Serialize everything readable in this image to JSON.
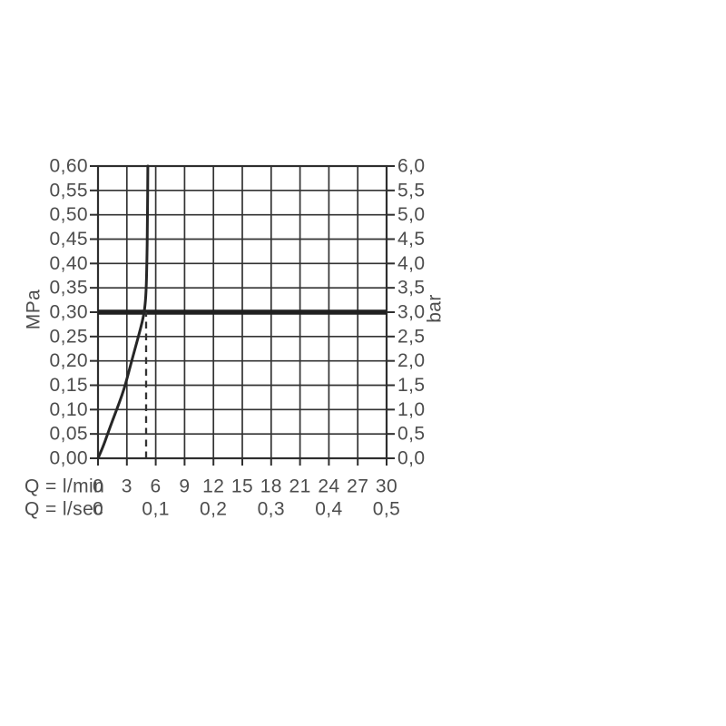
{
  "page": {
    "background": "#ffffff"
  },
  "colors": {
    "grid": "#333333",
    "border": "#2e2e2e",
    "tick": "#2e2e2e",
    "text": "#4d4d4d",
    "curve": "#262626",
    "reference_line": "#202020",
    "marker_line": "#333333"
  },
  "chart_data": {
    "type": "line",
    "title": "",
    "description": "Flow rate versus pressure diagram with flow limiter curve",
    "grid": true,
    "legend": false,
    "x_axis": {
      "label": "Q = l/min",
      "min": 0,
      "max": 30,
      "step": 3,
      "tick_values": [
        0,
        3,
        6,
        9,
        12,
        15,
        18,
        21,
        24,
        27,
        30
      ],
      "tick_labels": [
        "0",
        "3",
        "6",
        "9",
        "12",
        "15",
        "18",
        "21",
        "24",
        "27",
        "30"
      ]
    },
    "x_axis_secondary": {
      "label": "Q = l/sec",
      "tick_values": [
        0,
        6,
        12,
        18,
        24,
        30
      ],
      "tick_labels": [
        "0",
        "0,1",
        "0,2",
        "0,3",
        "0,4",
        "0,5"
      ]
    },
    "y_axis_left": {
      "label": "MPa",
      "min": 0,
      "max": 0.6,
      "step": 0.05,
      "tick_values": [
        0,
        0.05,
        0.1,
        0.15,
        0.2,
        0.25,
        0.3,
        0.35,
        0.4,
        0.45,
        0.5,
        0.55,
        0.6
      ],
      "tick_labels": [
        "0,00",
        "0,05",
        "0,10",
        "0,15",
        "0,20",
        "0,25",
        "0,30",
        "0,35",
        "0,40",
        "0,45",
        "0,50",
        "0,55",
        "0,60"
      ]
    },
    "y_axis_right": {
      "label": "bar",
      "min": 0,
      "max": 6,
      "step": 0.5,
      "tick_values": [
        0,
        0.5,
        1,
        1.5,
        2,
        2.5,
        3,
        3.5,
        4,
        4.5,
        5,
        5.5,
        6
      ],
      "tick_labels": [
        "0,0",
        "0,5",
        "1,0",
        "1,5",
        "2,0",
        "2,5",
        "3,0",
        "3,5",
        "4,0",
        "4,5",
        "5,0",
        "5,5",
        "6,0"
      ]
    },
    "series": [
      {
        "name": "flow-curve",
        "points": [
          [
            0,
            0
          ],
          [
            0.5,
            0.022
          ],
          [
            1.0,
            0.05
          ],
          [
            1.5,
            0.077
          ],
          [
            2.0,
            0.103
          ],
          [
            2.5,
            0.13
          ],
          [
            2.9,
            0.155
          ],
          [
            3.5,
            0.2
          ],
          [
            4.2,
            0.25
          ],
          [
            4.6,
            0.28
          ],
          [
            4.85,
            0.305
          ],
          [
            5.0,
            0.34
          ],
          [
            5.08,
            0.4
          ],
          [
            5.14,
            0.48
          ],
          [
            5.18,
            0.6
          ]
        ]
      }
    ],
    "reference_line_y": {
      "value": 0.3,
      "unit": "MPa",
      "equivalent": "3,0 bar",
      "style": "thick-solid"
    },
    "marker_line_x": {
      "value": 5,
      "unit": "l/min",
      "from_y": 0,
      "to_y": 0.3,
      "style": "dashed"
    }
  }
}
